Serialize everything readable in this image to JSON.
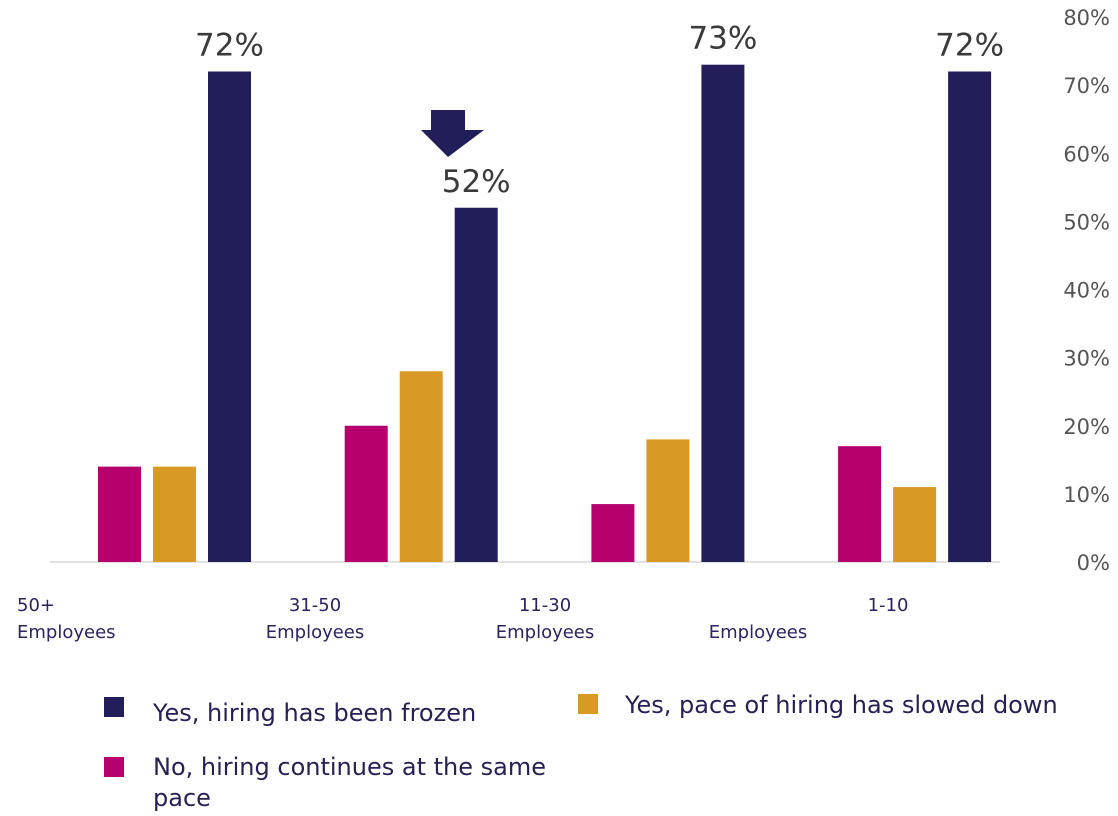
{
  "chart_data": {
    "type": "bar",
    "categories": [
      "50+ Employees",
      "31-50 Employees",
      "11-30 Employees",
      "1-10 Employees"
    ],
    "category_labels": [
      [
        "50+",
        "Employees"
      ],
      [
        "31-50",
        "Employees"
      ],
      [
        "11-30",
        "Employees"
      ],
      [
        "1-10",
        "Employees"
      ]
    ],
    "series": [
      {
        "name": "No, hiring continues at the same pace",
        "color": "#b5006e",
        "values": [
          14,
          20,
          8.5,
          17
        ]
      },
      {
        "name": "Yes, pace of hiring has slowed down",
        "color": "#d89a25",
        "values": [
          14,
          28,
          18,
          11
        ]
      },
      {
        "name": "Yes, hiring has been frozen",
        "color": "#221e5a",
        "values": [
          72,
          52,
          73,
          72
        ]
      }
    ],
    "data_labels": [
      "72%",
      "52%",
      "73%",
      "72%"
    ],
    "y_ticks": [
      "0%",
      "10%",
      "20%",
      "30%",
      "40%",
      "50%",
      "60%",
      "70%",
      "80%"
    ],
    "ylim": [
      0,
      80
    ],
    "y_axis_side": "right",
    "grid": false,
    "annotation": {
      "type": "down-arrow",
      "category_index": 1,
      "color": "#221e5a"
    },
    "legend": {
      "placement": "bottom",
      "items": [
        {
          "label": "Yes, hiring has been frozen",
          "color": "#221e5a"
        },
        {
          "label": "Yes, pace of hiring has slowed down",
          "color": "#d89a25"
        },
        {
          "label": "No, hiring continues at the same pace",
          "color": "#b5006e"
        }
      ]
    }
  }
}
